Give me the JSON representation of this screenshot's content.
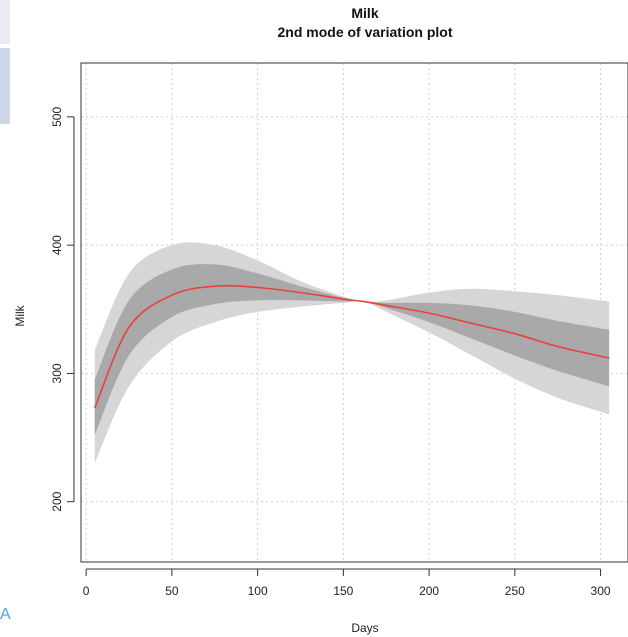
{
  "chart_data": {
    "type": "line",
    "title": "Milk",
    "subtitle": "2nd mode of variation plot",
    "xlabel": "Days",
    "ylabel": "Milk",
    "xlim": [
      -3,
      316
    ],
    "ylim": [
      153,
      542
    ],
    "x_ticks": [
      0,
      50,
      100,
      150,
      200,
      250,
      300
    ],
    "y_ticks": [
      200,
      300,
      400,
      500
    ],
    "grid": true,
    "colors": {
      "mean_line": "#e8413c",
      "inner_band": "#a9a9a9",
      "outer_band": "#d6d6d6",
      "grid": "#cfcfcf"
    },
    "x": [
      5,
      25,
      50,
      75,
      100,
      125,
      150,
      162,
      175,
      200,
      225,
      250,
      275,
      305
    ],
    "series": [
      {
        "name": "",
        "values": [
          273,
          336,
          361,
          368,
          367,
          363,
          358,
          356,
          353,
          347,
          339,
          331,
          321,
          312
        ]
      },
      {
        "band": "outer",
        "lower": [
          230,
          290,
          325,
          340,
          348,
          352,
          355,
          356,
          348,
          332,
          314,
          296,
          281,
          268
        ],
        "upper": [
          318,
          378,
          400,
          400,
          388,
          372,
          360,
          356,
          357,
          363,
          366,
          364,
          361,
          356
        ]
      },
      {
        "band": "inner",
        "lower": [
          252,
          314,
          344,
          354,
          357,
          357,
          356,
          356,
          351,
          340,
          327,
          314,
          302,
          290
        ],
        "upper": [
          295,
          357,
          381,
          385,
          378,
          368,
          359,
          356,
          355,
          355,
          353,
          348,
          341,
          334
        ]
      }
    ]
  },
  "fragments": {
    "stray_glyph": "A"
  }
}
